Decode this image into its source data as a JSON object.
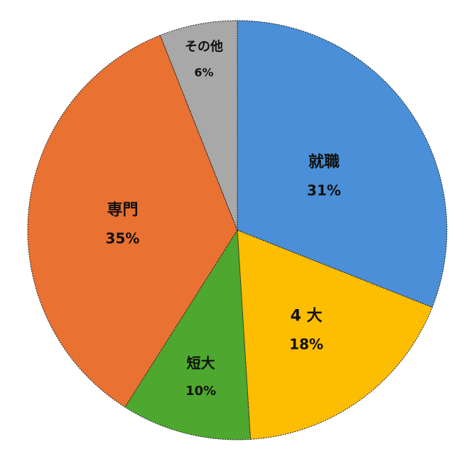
{
  "chart_data": {
    "type": "pie",
    "title": "",
    "start": "top",
    "direction": "clockwise",
    "slices": [
      {
        "label": "就職",
        "value": 31,
        "display": "31%",
        "color": "#4a8fd7"
      },
      {
        "label": "4 大",
        "value": 18,
        "display": "18%",
        "color": "#fdbd00"
      },
      {
        "label": "短大",
        "value": 10,
        "display": "10%",
        "color": "#4ea72e"
      },
      {
        "label": "専門",
        "value": 35,
        "display": "35%",
        "color": "#e97132"
      },
      {
        "label": "その他",
        "value": 6,
        "display": "6%",
        "color": "#a8a8a8"
      }
    ],
    "border": "dashed dark"
  }
}
